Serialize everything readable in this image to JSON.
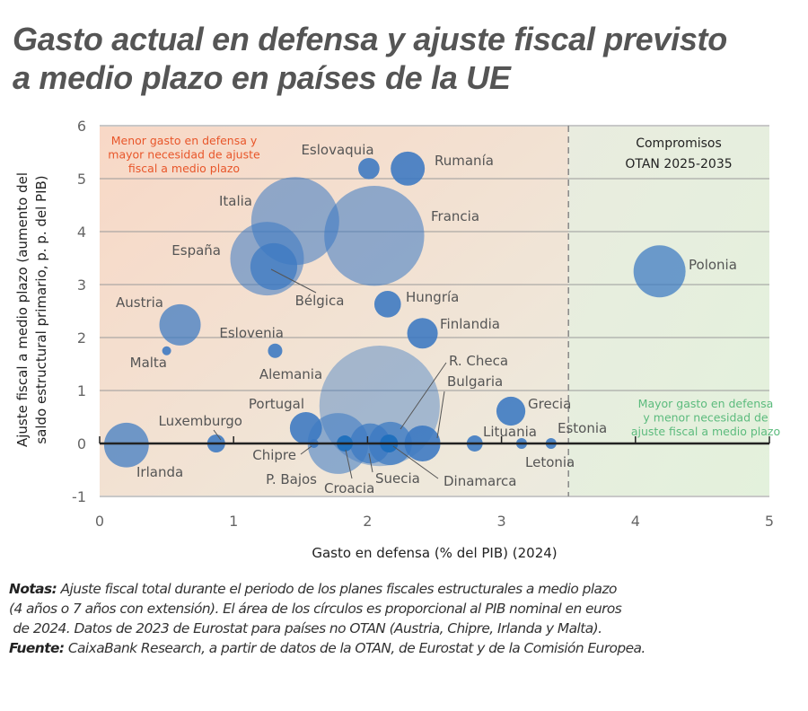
{
  "title_lines": [
    "Gasto actual en defensa y ajuste fiscal previsto",
    "a medio plazo en países de la UE"
  ],
  "notes": {
    "notes_label": "Notas:",
    "notes_lines": [
      " Ajuste fiscal total durante el periodo de los planes fiscales estructurales a medio plazo",
      "(4 años o 7 años con extensión). El área de los círculos es proporcional al PIB nominal en euros",
      " de 2024. Datos de 2023 de Eurostat para países no OTAN (Austria, Chipre, Irlanda y Malta)."
    ],
    "source_label": "Fuente:",
    "source_text": " CaixaBank Research, a partir de datos de la OTAN, de Eurostat y de la Comisión Europea."
  },
  "chart_data": {
    "type": "scatter",
    "bubble": true,
    "xlabel": "Gasto en defensa (% del PIB) (2024)",
    "ylabel_lines": [
      "Ajuste fiscal a medio plazo (aumento del",
      "saldo estructural primario, p. p. del PIB)"
    ],
    "xlim": [
      0,
      5
    ],
    "ylim": [
      -1,
      6
    ],
    "xticks": [
      "0",
      "1",
      "2",
      "3",
      "4",
      "5"
    ],
    "yticks": [
      "-1",
      "0",
      "1",
      "2",
      "3",
      "4",
      "5",
      "6"
    ],
    "grid": "horizontal",
    "reference_line": {
      "x": 3.5,
      "style": "dashed",
      "label_lines": [
        "Compromisos",
        "OTAN 2025-2035"
      ]
    },
    "annotations": {
      "top_left": {
        "lines": [
          "Menor gasto en defensa y",
          "mayor necesidad de ajuste",
          "fiscal a medio plazo"
        ],
        "color": "#e8562a"
      },
      "bottom_right": {
        "lines": [
          "Mayor gasto en defensa",
          "y menor necesidad de",
          "ajuste fiscal a medio plazo"
        ],
        "color": "#5cbb7d"
      }
    },
    "colors": {
      "bubble": "#3a78c2",
      "bubble_dark": "#1e6fbd",
      "bg_left": "#f6dccb",
      "bg_right": "#e6f0df"
    },
    "size_note": "relative bubble area (proportional to nominal GDP)",
    "points": [
      {
        "name": "Eslovaquia",
        "x": 2.01,
        "y": 5.19,
        "size": 1.4
      },
      {
        "name": "Rumanía",
        "x": 2.3,
        "y": 5.19,
        "size": 3.6
      },
      {
        "name": "Italia",
        "x": 1.46,
        "y": 4.2,
        "size": 24
      },
      {
        "name": "Francia",
        "x": 2.05,
        "y": 3.92,
        "size": 31
      },
      {
        "name": "España",
        "x": 1.25,
        "y": 3.49,
        "size": 16.8
      },
      {
        "name": "Bélgica",
        "x": 1.3,
        "y": 3.34,
        "size": 6.8
      },
      {
        "name": "Hungría",
        "x": 2.15,
        "y": 2.63,
        "size": 2.2
      },
      {
        "name": "Finlandia",
        "x": 2.41,
        "y": 2.08,
        "size": 2.9
      },
      {
        "name": "Austria",
        "x": 0.6,
        "y": 2.24,
        "size": 5.3
      },
      {
        "name": "Eslovenia",
        "x": 1.31,
        "y": 1.75,
        "size": 0.64
      },
      {
        "name": "Malta",
        "x": 0.5,
        "y": 1.75,
        "size": 0.25
      },
      {
        "name": "Alemania",
        "x": 2.09,
        "y": 0.71,
        "size": 45
      },
      {
        "name": "Portugal",
        "x": 1.54,
        "y": 0.29,
        "size": 3.2
      },
      {
        "name": "Irlanda",
        "x": 0.2,
        "y": -0.03,
        "size": 6.2
      },
      {
        "name": "Luxemburgo",
        "x": 0.87,
        "y": 0.0,
        "size": 1.0
      },
      {
        "name": "Chipre",
        "x": 1.6,
        "y": 0.0,
        "size": 0.25
      },
      {
        "name": "P. Bajos",
        "x": 1.78,
        "y": 0.0,
        "size": 11.5
      },
      {
        "name": "Croacia",
        "x": 1.83,
        "y": 0.0,
        "size": 0.8
      },
      {
        "name": "Suecia",
        "x": 2.02,
        "y": 0.0,
        "size": 5.0
      },
      {
        "name": "R. Checa",
        "x": 2.17,
        "y": 0.0,
        "size": 5.8
      },
      {
        "name": "Dinamarca",
        "x": 2.16,
        "y": 0.0,
        "size": 1.0
      },
      {
        "name": "Bulgaria",
        "x": 2.41,
        "y": 0.0,
        "size": 4.0
      },
      {
        "name": "Lituania",
        "x": 2.8,
        "y": 0.0,
        "size": 0.8
      },
      {
        "name": "Letonia",
        "x": 3.15,
        "y": 0.0,
        "size": 0.36
      },
      {
        "name": "Estonia",
        "x": 3.37,
        "y": 0.0,
        "size": 0.36
      },
      {
        "name": "Grecia",
        "x": 3.07,
        "y": 0.61,
        "size": 2.6
      },
      {
        "name": "Polonia",
        "x": 4.18,
        "y": 3.25,
        "size": 8.4
      }
    ]
  }
}
